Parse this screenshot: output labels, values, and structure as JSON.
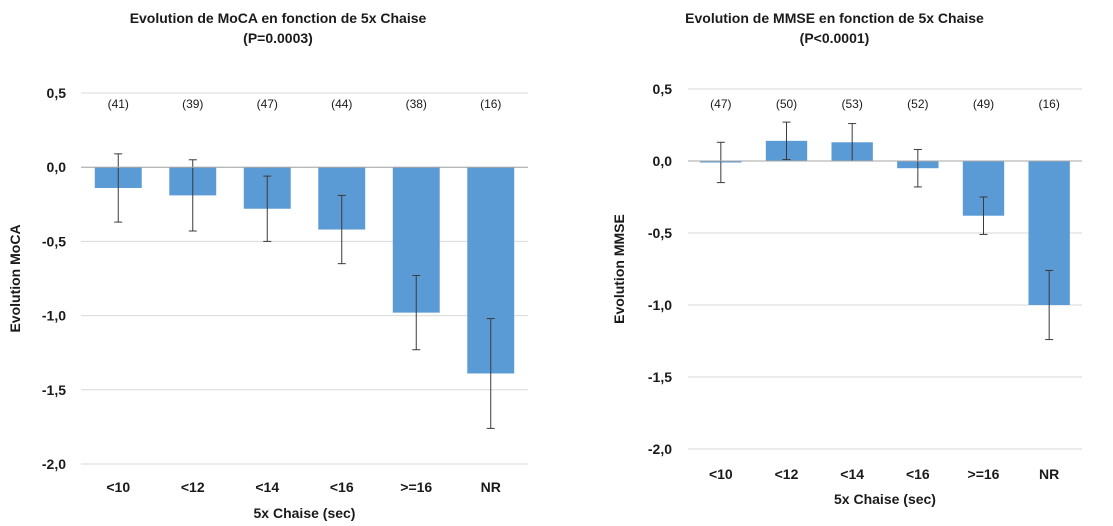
{
  "chart_data": [
    {
      "type": "bar",
      "title": "Evolution de MoCA en fonction de 5x Chaise",
      "subtitle": "(P=0.0003)",
      "xlabel": "5x Chaise (sec)",
      "ylabel": "Evolution MoCA",
      "categories": [
        "<10",
        "<12",
        "<14",
        "<16",
        ">=16",
        "NR"
      ],
      "values": [
        -0.14,
        -0.19,
        -0.28,
        -0.42,
        -0.98,
        -1.39
      ],
      "error": [
        0.23,
        0.24,
        0.22,
        0.23,
        0.25,
        0.37
      ],
      "counts": [
        "(41)",
        "(39)",
        "(47)",
        "(44)",
        "(38)",
        "(16)"
      ],
      "ylim": [
        -2.0,
        0.5
      ],
      "yticks": [
        0.5,
        0.0,
        -0.5,
        -1.0,
        -1.5,
        -2.0
      ],
      "ytick_labels": [
        "0,5",
        "0,0",
        "-0,5",
        "-1,0",
        "-1,5",
        "-2,0"
      ],
      "grid": true,
      "bar_color": "#5b9bd5"
    },
    {
      "type": "bar",
      "title": "Evolution de MMSE en fonction de 5x Chaise",
      "subtitle": "(P<0.0001)",
      "xlabel": "5x Chaise (sec)",
      "ylabel": "Evolution MMSE",
      "categories": [
        "<10",
        "<12",
        "<14",
        "<16",
        ">=16",
        "NR"
      ],
      "values": [
        -0.01,
        0.14,
        0.13,
        -0.05,
        -0.38,
        -1.0
      ],
      "error": [
        0.14,
        0.13,
        0.13,
        0.13,
        0.13,
        0.24
      ],
      "counts": [
        "(47)",
        "(50)",
        "(53)",
        "(52)",
        "(49)",
        "(16)"
      ],
      "ylim": [
        -2.0,
        0.5
      ],
      "yticks": [
        0.5,
        0.0,
        -0.5,
        -1.0,
        -1.5,
        -2.0
      ],
      "ytick_labels": [
        "0,5",
        "0,0",
        "-0,5",
        "-1,0",
        "-1,5",
        "-2,0"
      ],
      "grid": true,
      "bar_color": "#5b9bd5"
    }
  ]
}
